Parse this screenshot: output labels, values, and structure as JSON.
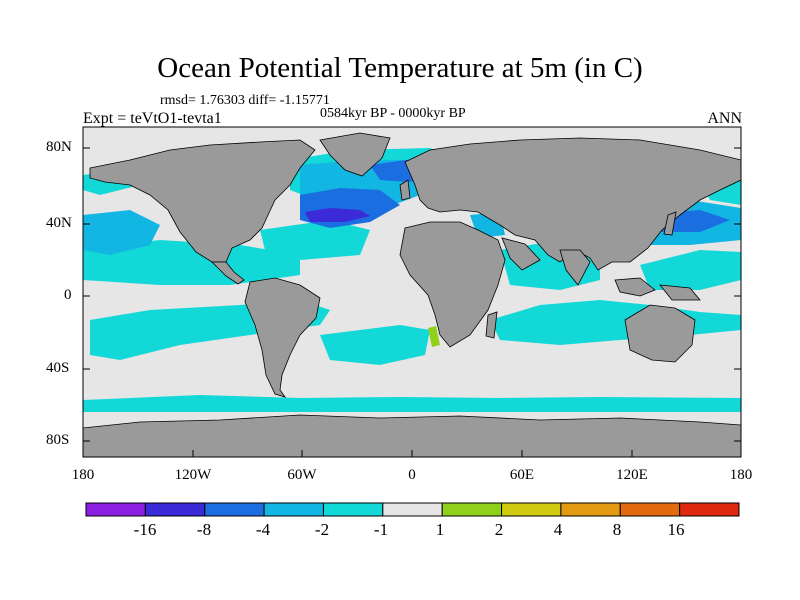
{
  "title": "Ocean Potential Temperature at 5m (in C)",
  "stats": "rmsd= 1.76303 diff= -1.15771",
  "period": "0584kyr BP - 0000kyr BP",
  "experiment": "Expt = teVtO1-tevta1",
  "season": "ANN",
  "lat_labels": [
    "80N",
    "40N",
    "0",
    "40S",
    "80S"
  ],
  "lon_labels": [
    "180",
    "120W",
    "60W",
    "0",
    "60E",
    "120E",
    "180"
  ],
  "colorbar": {
    "labels": [
      "-16",
      "-8",
      "-4",
      "-2",
      "-1",
      "1",
      "2",
      "4",
      "8",
      "16"
    ],
    "colors": [
      "#8a1fe0",
      "#3a2ad8",
      "#1a6ee0",
      "#12b6e2",
      "#12d8d8",
      "#e6e6e6",
      "#8fd11a",
      "#d2cc10",
      "#e49a10",
      "#e46a10",
      "#e02a10"
    ]
  },
  "map": {
    "land_color": "#9a9a9a",
    "ocean_default_color": "#e6e6e6"
  }
}
